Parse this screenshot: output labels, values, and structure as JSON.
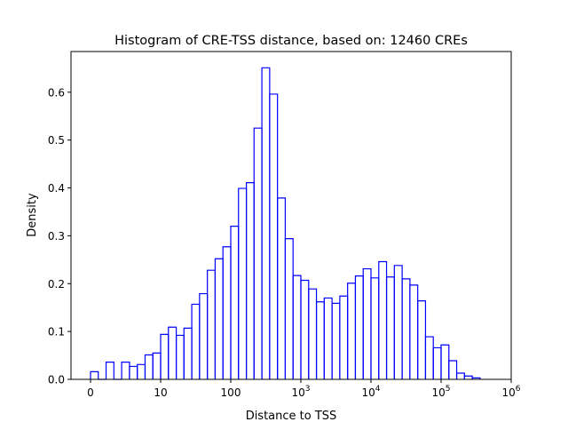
{
  "chart_data": {
    "type": "histogram",
    "title": "Histogram of CRE-TSS distance, based on: 12460 CREs",
    "xlabel": "Distance to TSS",
    "ylabel": "Density",
    "x_scale": "symlog",
    "x_linthresh": 10,
    "xlim": [
      -3,
      1000000
    ],
    "ylim": [
      0,
      0.685
    ],
    "grid": false,
    "line_color": "#0000ff",
    "histtype": "step",
    "x_ticks": [
      0,
      10,
      100,
      1000,
      10000,
      100000,
      1000000
    ],
    "x_tick_labels": [
      "0",
      "10",
      "100",
      "10^3",
      "10^4",
      "10^5",
      "10^6"
    ],
    "y_ticks": [
      0.0,
      0.1,
      0.2,
      0.3,
      0.4,
      0.5,
      0.6
    ],
    "y_tick_labels": [
      "0.0",
      "0.1",
      "0.2",
      "0.3",
      "0.4",
      "0.5",
      "0.6"
    ],
    "bin_edges": [
      0,
      1.11,
      2.22,
      3.33,
      4.44,
      5.56,
      6.67,
      7.78,
      8.89,
      10,
      12.9,
      16.7,
      21.5,
      27.8,
      35.9,
      46.4,
      59.9,
      77.4,
      100,
      129,
      167,
      215,
      278,
      359,
      464,
      599,
      774,
      1000,
      1292,
      1668,
      2154,
      2783,
      3594,
      4642,
      5995,
      7743,
      10000,
      12915,
      16681,
      21544,
      27826,
      35938,
      46416,
      59948,
      77426,
      100000,
      129155,
      166810,
      215443,
      278256,
      359381
    ],
    "density": [
      0.016,
      0,
      0.036,
      0,
      0.036,
      0.027,
      0.031,
      0.051,
      0.055,
      0.094,
      0.109,
      0.092,
      0.107,
      0.157,
      0.179,
      0.228,
      0.252,
      0.277,
      0.32,
      0.399,
      0.411,
      0.525,
      0.651,
      0.596,
      0.379,
      0.294,
      0.217,
      0.207,
      0.189,
      0.162,
      0.17,
      0.159,
      0.174,
      0.201,
      0.216,
      0.231,
      0.212,
      0.246,
      0.214,
      0.238,
      0.21,
      0.197,
      0.164,
      0.089,
      0.066,
      0.072,
      0.039,
      0.013,
      0.007,
      0.003
    ]
  }
}
